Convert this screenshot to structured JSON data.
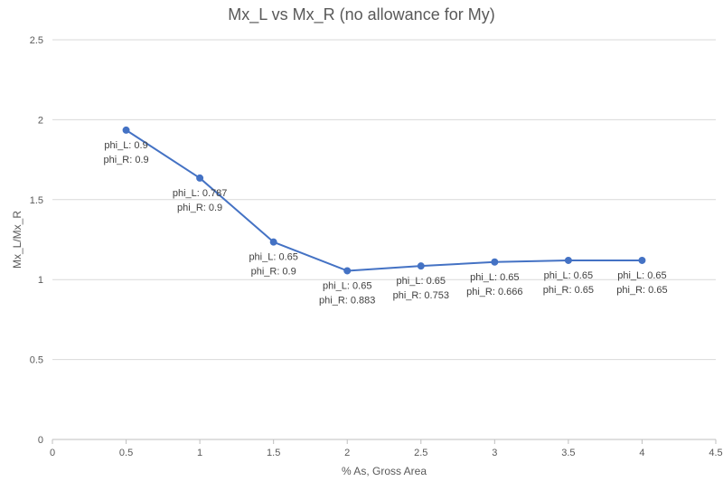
{
  "chart_data": {
    "type": "line",
    "title": "Mx_L vs Mx_R (no allowance for My)",
    "xlabel": "% As, Gross Area",
    "ylabel": "Mx_L/Mx_R",
    "xlim": [
      0,
      4.5
    ],
    "ylim": [
      0,
      2.5
    ],
    "x_ticks": [
      "0",
      "0.5",
      "1",
      "1.5",
      "2",
      "2.5",
      "3",
      "3.5",
      "4",
      "4.5"
    ],
    "y_ticks": [
      "0",
      "0.5",
      "1",
      "1.5",
      "2",
      "2.5"
    ],
    "grid": "horizontal",
    "color": "#4472C4",
    "x": [
      0.5,
      1,
      1.5,
      2,
      2.5,
      3,
      3.5,
      4
    ],
    "y": [
      1.935,
      1.635,
      1.235,
      1.055,
      1.085,
      1.11,
      1.12,
      1.12
    ],
    "data_labels": [
      [
        "phi_L: 0.9",
        "phi_R: 0.9"
      ],
      [
        "phi_L: 0.787",
        "phi_R: 0.9"
      ],
      [
        "phi_L: 0.65",
        "phi_R: 0.9"
      ],
      [
        "phi_L: 0.65",
        "phi_R: 0.883"
      ],
      [
        "phi_L: 0.65",
        "phi_R: 0.753"
      ],
      [
        "phi_L: 0.65",
        "phi_R: 0.666"
      ],
      [
        "phi_L: 0.65",
        "phi_R: 0.65"
      ],
      [
        "phi_L: 0.65",
        "phi_R: 0.65"
      ]
    ]
  }
}
